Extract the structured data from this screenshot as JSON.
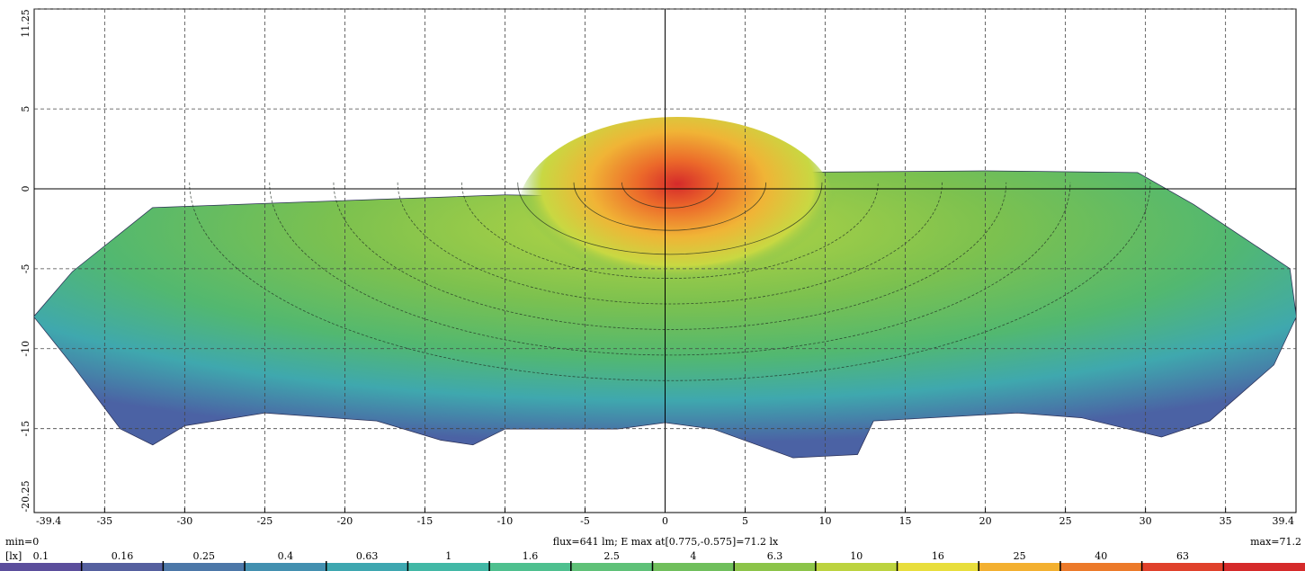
{
  "chart_data": {
    "type": "heatmap",
    "title": "",
    "xlabel": "",
    "ylabel": "",
    "xlim": [
      -39.4,
      39.4
    ],
    "ylim": [
      -20.25,
      11.25
    ],
    "x_ticks": [
      "-39.4",
      "-35",
      "-30",
      "-25",
      "-20",
      "-15",
      "-10",
      "-5",
      "0",
      "5",
      "10",
      "15",
      "20",
      "25",
      "30",
      "35",
      "39.4"
    ],
    "y_ticks": [
      "11.25",
      "5",
      "0",
      "-5",
      "-10",
      "-15",
      "-20.25"
    ],
    "x_tick_values": [
      -39.4,
      -35,
      -30,
      -25,
      -20,
      -15,
      -10,
      -5,
      0,
      5,
      10,
      15,
      20,
      25,
      30,
      35,
      39.4
    ],
    "y_tick_values": [
      11.25,
      5,
      0,
      -5,
      -10,
      -15,
      -20.25
    ],
    "grid": true,
    "illuminance_unit": "[lx]",
    "min_label": "min=0",
    "max_label": "max=71.2",
    "info_label": "flux=641 lm; E max at[0.775,-0.575]=71.2 lx",
    "flux_lm": 641,
    "e_max_lx": 71.2,
    "e_max_location": [
      0.775,
      -0.575
    ],
    "e_min_lx": 0,
    "colorbar_levels": [
      "0.1",
      "0.16",
      "0.25",
      "0.4",
      "0.63",
      "1",
      "1.6",
      "2.5",
      "4",
      "6.3",
      "10",
      "16",
      "25",
      "40",
      "63"
    ],
    "colorbar_colors": [
      "#5b4e9c",
      "#55609f",
      "#4c77a8",
      "#4390b0",
      "#3ea7b0",
      "#42b8a6",
      "#4ec08f",
      "#5fc178",
      "#70bf5c",
      "#8cc449",
      "#bcd33f",
      "#e8de3c",
      "#f3b030",
      "#ec7a2a",
      "#e0412b",
      "#d52a2a"
    ]
  }
}
